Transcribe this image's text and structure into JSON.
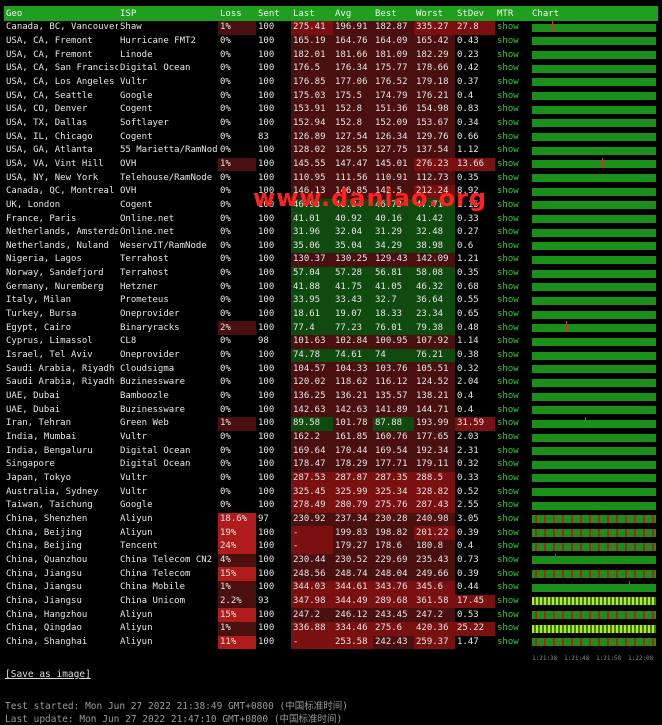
{
  "headers": [
    "Geo",
    "ISP",
    "Loss",
    "Sent",
    "Last",
    "Avg",
    "Best",
    "Worst",
    "StDev",
    "MTR",
    "Chart"
  ],
  "colors": {
    "header_bg": "#1f9e1f",
    "good_cell": "#0f4a0f",
    "warn_cell": "#4a0f0f",
    "bad_cell": "#7a1010",
    "loss_high": "#b01c1c",
    "link": "#2ecc2e"
  },
  "rows": [
    {
      "geo": "Canada, BC, Vancouver",
      "isp": "Shaw",
      "loss": "1%",
      "sent": "100",
      "last": "275.41",
      "avg": "196.91",
      "best": "182.87",
      "worst": "335.27",
      "stdev": "27.8",
      "mtr": "show",
      "chart": "spike"
    },
    {
      "geo": "USA, CA, Fremont",
      "isp": "Hurricane FMT2",
      "loss": "0%",
      "sent": "100",
      "last": "165.19",
      "avg": "164.76",
      "best": "164.09",
      "worst": "165.42",
      "stdev": "0.43",
      "mtr": "show",
      "chart": "flat"
    },
    {
      "geo": "USA, CA, Fremont",
      "isp": "Linode",
      "loss": "0%",
      "sent": "100",
      "last": "182.01",
      "avg": "181.66",
      "best": "181.09",
      "worst": "182.29",
      "stdev": "0.23",
      "mtr": "show",
      "chart": "flat"
    },
    {
      "geo": "USA, CA, San Francisco",
      "isp": "Digital Ocean",
      "loss": "0%",
      "sent": "100",
      "last": "176.5",
      "avg": "176.34",
      "best": "175.77",
      "worst": "178.66",
      "stdev": "0.42",
      "mtr": "show",
      "chart": "flat"
    },
    {
      "geo": "USA, CA, Los Angeles",
      "isp": "Vultr",
      "loss": "0%",
      "sent": "100",
      "last": "176.85",
      "avg": "177.06",
      "best": "176.52",
      "worst": "179.18",
      "stdev": "0.37",
      "mtr": "show",
      "chart": "flat"
    },
    {
      "geo": "USA, CA, Seattle",
      "isp": "Google",
      "loss": "0%",
      "sent": "100",
      "last": "175.03",
      "avg": "175.5",
      "best": "174.79",
      "worst": "176.21",
      "stdev": "0.4",
      "mtr": "show",
      "chart": "flat"
    },
    {
      "geo": "USA, CO, Denver",
      "isp": "Cogent",
      "loss": "0%",
      "sent": "100",
      "last": "153.91",
      "avg": "152.8",
      "best": "151.36",
      "worst": "154.98",
      "stdev": "0.83",
      "mtr": "show",
      "chart": "flat"
    },
    {
      "geo": "USA, TX, Dallas",
      "isp": "Softlayer",
      "loss": "0%",
      "sent": "100",
      "last": "152.94",
      "avg": "152.8",
      "best": "152.09",
      "worst": "153.67",
      "stdev": "0.34",
      "mtr": "show",
      "chart": "flat"
    },
    {
      "geo": "USA, IL, Chicago",
      "isp": "Cogent",
      "loss": "0%",
      "sent": "83",
      "last": "126.89",
      "avg": "127.54",
      "best": "126.34",
      "worst": "129.76",
      "stdev": "0.66",
      "mtr": "show",
      "chart": "flat"
    },
    {
      "geo": "USA, GA, Atlanta",
      "isp": "55 Marietta/RamNode",
      "loss": "0%",
      "sent": "100",
      "last": "128.02",
      "avg": "128.55",
      "best": "127.75",
      "worst": "137.54",
      "stdev": "1.12",
      "mtr": "show",
      "chart": "flat"
    },
    {
      "geo": "USA, VA, Vint Hill",
      "isp": "OVH",
      "loss": "1%",
      "sent": "100",
      "last": "145.55",
      "avg": "147.47",
      "best": "145.01",
      "worst": "276.23",
      "stdev": "13.66",
      "mtr": "show",
      "chart": "spike"
    },
    {
      "geo": "USA, NY, New York",
      "isp": "Telehouse/RamNode",
      "loss": "0%",
      "sent": "100",
      "last": "110.95",
      "avg": "111.56",
      "best": "110.91",
      "worst": "112.73",
      "stdev": "0.35",
      "mtr": "show",
      "chart": "flat"
    },
    {
      "geo": "Canada, QC, Montreal",
      "isp": "OVH",
      "loss": "0%",
      "sent": "100",
      "last": "146.13",
      "avg": "146.85",
      "best": "142.5",
      "worst": "212.24",
      "stdev": "8.92",
      "mtr": "show",
      "chart": "flat"
    },
    {
      "geo": "UK, London",
      "isp": "Cogent",
      "loss": "0%",
      "sent": "100",
      "last": "46.93",
      "avg": "46.84",
      "best": "46.73",
      "worst": "47.71",
      "stdev": "1.15",
      "mtr": "show",
      "chart": "flat"
    },
    {
      "geo": "France, Paris",
      "isp": "Online.net",
      "loss": "0%",
      "sent": "100",
      "last": "41.01",
      "avg": "40.92",
      "best": "40.16",
      "worst": "41.42",
      "stdev": "0.33",
      "mtr": "show",
      "chart": "flat"
    },
    {
      "geo": "Netherlands, Amsterdam",
      "isp": "Online.net",
      "loss": "0%",
      "sent": "100",
      "last": "31.96",
      "avg": "32.04",
      "best": "31.29",
      "worst": "32.48",
      "stdev": "0.27",
      "mtr": "show",
      "chart": "flat"
    },
    {
      "geo": "Netherlands, Nuland",
      "isp": "WeservIT/RamNode",
      "loss": "0%",
      "sent": "100",
      "last": "35.06",
      "avg": "35.04",
      "best": "34.29",
      "worst": "38.98",
      "stdev": "0.6",
      "mtr": "show",
      "chart": "flat"
    },
    {
      "geo": "Nigeria, Lagos",
      "isp": "Terrahost",
      "loss": "0%",
      "sent": "100",
      "last": "130.37",
      "avg": "130.25",
      "best": "129.43",
      "worst": "142.09",
      "stdev": "1.21",
      "mtr": "show",
      "chart": "flat"
    },
    {
      "geo": "Norway, Sandefjord",
      "isp": "Terrahost",
      "loss": "0%",
      "sent": "100",
      "last": "57.04",
      "avg": "57.28",
      "best": "56.81",
      "worst": "58.08",
      "stdev": "0.35",
      "mtr": "show",
      "chart": "flat"
    },
    {
      "geo": "Germany, Nuremberg",
      "isp": "Hetzner",
      "loss": "0%",
      "sent": "100",
      "last": "41.88",
      "avg": "41.75",
      "best": "41.05",
      "worst": "46.32",
      "stdev": "0.68",
      "mtr": "show",
      "chart": "flat"
    },
    {
      "geo": "Italy, Milan",
      "isp": "Prometeus",
      "loss": "0%",
      "sent": "100",
      "last": "33.95",
      "avg": "33.43",
      "best": "32.7",
      "worst": "36.64",
      "stdev": "0.55",
      "mtr": "show",
      "chart": "flat"
    },
    {
      "geo": "Turkey, Bursa",
      "isp": "Oneprovider",
      "loss": "0%",
      "sent": "100",
      "last": "18.61",
      "avg": "19.07",
      "best": "18.33",
      "worst": "23.34",
      "stdev": "0.65",
      "mtr": "show",
      "chart": "flat"
    },
    {
      "geo": "Egypt, Cairo",
      "isp": "Binaryracks",
      "loss": "2%",
      "sent": "100",
      "last": "77.4",
      "avg": "77.23",
      "best": "76.01",
      "worst": "79.38",
      "stdev": "0.48",
      "mtr": "show",
      "chart": "spike"
    },
    {
      "geo": "Cyprus, Limassol",
      "isp": "CL8",
      "loss": "0%",
      "sent": "98",
      "last": "101.63",
      "avg": "102.84",
      "best": "100.95",
      "worst": "107.92",
      "stdev": "1.14",
      "mtr": "show",
      "chart": "flat"
    },
    {
      "geo": "Israel, Tel Aviv",
      "isp": "Oneprovider",
      "loss": "0%",
      "sent": "100",
      "last": "74.78",
      "avg": "74.61",
      "best": "74",
      "worst": "76.21",
      "stdev": "0.38",
      "mtr": "show",
      "chart": "flat"
    },
    {
      "geo": "Saudi Arabia, Riyadh",
      "isp": "Cloudsigma",
      "loss": "0%",
      "sent": "100",
      "last": "104.57",
      "avg": "104.33",
      "best": "103.76",
      "worst": "105.51",
      "stdev": "0.32",
      "mtr": "show",
      "chart": "flat"
    },
    {
      "geo": "Saudi Arabia, Riyadh",
      "isp": "Buzinessware",
      "loss": "0%",
      "sent": "100",
      "last": "120.02",
      "avg": "118.62",
      "best": "116.12",
      "worst": "124.52",
      "stdev": "2.04",
      "mtr": "show",
      "chart": "flat"
    },
    {
      "geo": "UAE, Dubai",
      "isp": "Bamboozle",
      "loss": "0%",
      "sent": "100",
      "last": "136.25",
      "avg": "136.21",
      "best": "135.57",
      "worst": "138.21",
      "stdev": "0.4",
      "mtr": "show",
      "chart": "flat"
    },
    {
      "geo": "UAE, Dubai",
      "isp": "Buzinessware",
      "loss": "0%",
      "sent": "100",
      "last": "142.63",
      "avg": "142.63",
      "best": "141.89",
      "worst": "144.71",
      "stdev": "0.4",
      "mtr": "show",
      "chart": "flat"
    },
    {
      "geo": "Iran, Tehran",
      "isp": "Green Web",
      "loss": "1%",
      "sent": "100",
      "last": "89.58",
      "avg": "101.78",
      "best": "87.88",
      "worst": "193.99",
      "stdev": "31.59",
      "mtr": "show",
      "chart": "spike"
    },
    {
      "geo": "India, Mumbai",
      "isp": "Vultr",
      "loss": "0%",
      "sent": "100",
      "last": "162.2",
      "avg": "161.85",
      "best": "160.76",
      "worst": "177.65",
      "stdev": "2.03",
      "mtr": "show",
      "chart": "flat"
    },
    {
      "geo": "India, Bengaluru",
      "isp": "Digital Ocean",
      "loss": "0%",
      "sent": "100",
      "last": "169.64",
      "avg": "170.44",
      "best": "169.54",
      "worst": "192.34",
      "stdev": "2.31",
      "mtr": "show",
      "chart": "flat"
    },
    {
      "geo": "Singapore",
      "isp": "Digital Ocean",
      "loss": "0%",
      "sent": "100",
      "last": "178.47",
      "avg": "178.29",
      "best": "177.71",
      "worst": "179.11",
      "stdev": "0.32",
      "mtr": "show",
      "chart": "flat"
    },
    {
      "geo": "Japan, Tokyo",
      "isp": "Vultr",
      "loss": "0%",
      "sent": "100",
      "last": "287.53",
      "avg": "287.87",
      "best": "287.35",
      "worst": "288.5",
      "stdev": "0.33",
      "mtr": "show",
      "chart": "flat"
    },
    {
      "geo": "Australia, Sydney",
      "isp": "Vultr",
      "loss": "0%",
      "sent": "100",
      "last": "325.45",
      "avg": "325.99",
      "best": "325.34",
      "worst": "328.82",
      "stdev": "0.52",
      "mtr": "show",
      "chart": "flat"
    },
    {
      "geo": "Taiwan, Taichung",
      "isp": "Google",
      "loss": "0%",
      "sent": "100",
      "last": "278.49",
      "avg": "280.79",
      "best": "275.76",
      "worst": "287.43",
      "stdev": "2.55",
      "mtr": "show",
      "chart": "flat"
    },
    {
      "geo": "China, Shenzhen",
      "isp": "Aliyun",
      "loss": "18.6%",
      "sent": "97",
      "last": "230.92",
      "avg": "237.34",
      "best": "230.28",
      "worst": "240.98",
      "stdev": "3.05",
      "mtr": "show",
      "chart": "red"
    },
    {
      "geo": "China, Beijing",
      "isp": "Aliyun",
      "loss": "19%",
      "sent": "100",
      "last": "-",
      "avg": "199.83",
      "best": "198.82",
      "worst": "201.22",
      "stdev": "0.39",
      "mtr": "show",
      "chart": "red"
    },
    {
      "geo": "China, Beijing",
      "isp": "Tencent",
      "loss": "24%",
      "sent": "100",
      "last": "-",
      "avg": "179.27",
      "best": "178.6",
      "worst": "180.8",
      "stdev": "0.4",
      "mtr": "show",
      "chart": "red"
    },
    {
      "geo": "China, Quanzhou",
      "isp": "China Telecom CN2",
      "loss": "4%",
      "sent": "100",
      "last": "230.44",
      "avg": "230.52",
      "best": "229.69",
      "worst": "235.43",
      "stdev": "0.73",
      "mtr": "show",
      "chart": "spike"
    },
    {
      "geo": "China, Jiangsu",
      "isp": "China Telecom",
      "loss": "15%",
      "sent": "100",
      "last": "248.56",
      "avg": "248.74",
      "best": "248.04",
      "worst": "249.66",
      "stdev": "0.39",
      "mtr": "show",
      "chart": "red"
    },
    {
      "geo": "China, Jiangsu",
      "isp": "China Mobile",
      "loss": "1%",
      "sent": "100",
      "last": "344.03",
      "avg": "344.61",
      "best": "343.76",
      "worst": "345.6",
      "stdev": "0.44",
      "mtr": "show",
      "chart": "spike"
    },
    {
      "geo": "China, Jiangsu",
      "isp": "China Unicom",
      "loss": "2.2%",
      "sent": "93",
      "last": "347.98",
      "avg": "344.49",
      "best": "289.68",
      "worst": "361.58",
      "stdev": "17.45",
      "mtr": "show",
      "chart": "yellow"
    },
    {
      "geo": "China, Hangzhou",
      "isp": "Aliyun",
      "loss": "15%",
      "sent": "100",
      "last": "247.2",
      "avg": "246.12",
      "best": "243.45",
      "worst": "247.2",
      "stdev": "0.53",
      "mtr": "show",
      "chart": "red"
    },
    {
      "geo": "China, Qingdao",
      "isp": "Aliyun",
      "loss": "1%",
      "sent": "100",
      "last": "336.88",
      "avg": "334.46",
      "best": "275.6",
      "worst": "420.36",
      "stdev": "25.22",
      "mtr": "show",
      "chart": "yellow"
    },
    {
      "geo": "China, Shanghai",
      "isp": "Aliyun",
      "loss": "11%",
      "sent": "100",
      "last": "-",
      "avg": "253.58",
      "best": "242.43",
      "worst": "259.37",
      "stdev": "1.47",
      "mtr": "show",
      "chart": "red"
    }
  ],
  "chart_axis": [
    "1:21:38",
    "1:21:48",
    "1:21:58",
    "1:22:08"
  ],
  "watermark": "www.daniao.org",
  "save_link": "[Save as image]",
  "footer": {
    "test_started": "Test started: Mon Jun 27 2022 21:38:49 GMT+0800 (中国标准时间)",
    "last_update": "Last update: Mon Jun 27 2022 21:47:10 GMT+0800 (中国标准时间)"
  }
}
